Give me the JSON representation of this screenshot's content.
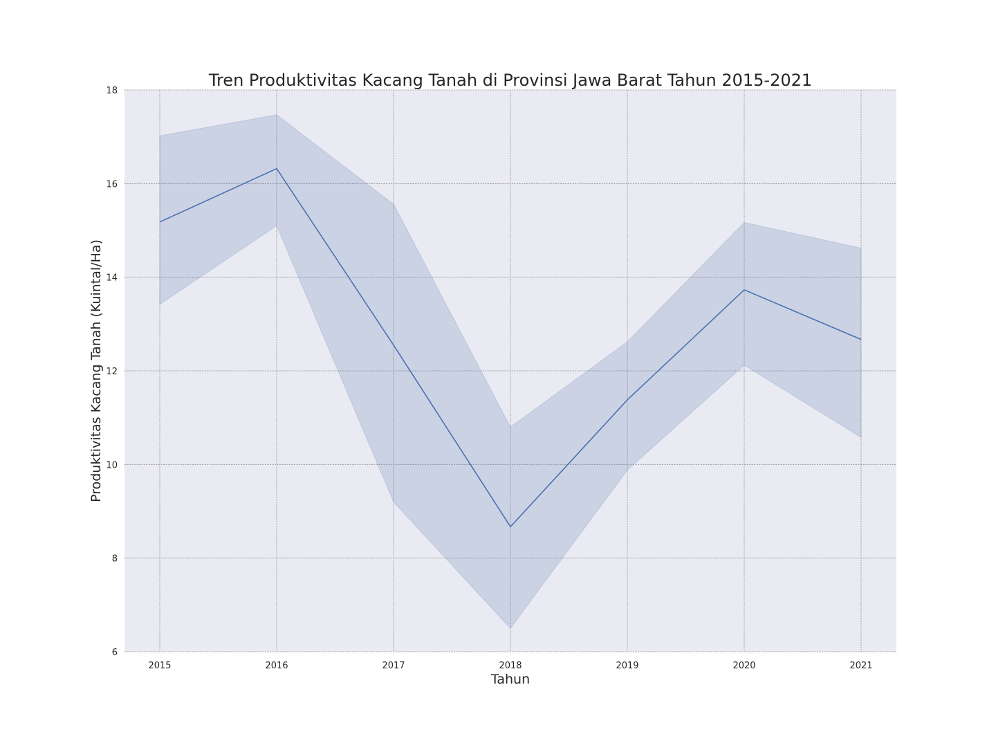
{
  "chart_data": {
    "type": "line",
    "title": "Tren Produktivitas Kacang Tanah di Provinsi Jawa Barat Tahun 2015-2021",
    "xlabel": "Tahun",
    "ylabel": "Produktivitas Kacang Tanah (Kuintal/Ha)",
    "x": [
      "2015",
      "2016",
      "2017",
      "2018",
      "2019",
      "2020",
      "2021"
    ],
    "series": [
      {
        "values": [
          15.18,
          16.32,
          12.55,
          8.67,
          11.38,
          13.73,
          12.67
        ],
        "ci_lower": [
          13.42,
          15.1,
          9.2,
          6.5,
          9.88,
          12.12,
          10.58
        ],
        "ci_upper": [
          17.02,
          17.47,
          15.56,
          10.8,
          12.62,
          15.17,
          14.62
        ]
      }
    ],
    "ylim": [
      6,
      18
    ],
    "yticks": [
      6,
      8,
      10,
      12,
      14,
      16,
      18
    ],
    "grid": true,
    "colors": {
      "line": "#4c72b0",
      "band": "#4c72b0",
      "background": "#eaeaf2",
      "grid": "#8c8c8c"
    }
  }
}
